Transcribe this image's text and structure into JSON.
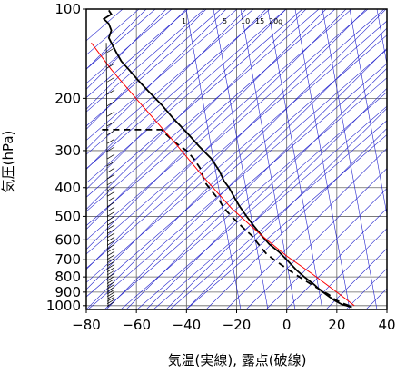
{
  "chart_data": {
    "type": "line",
    "title": "",
    "xlabel": "気温(実線), 露点(破線)",
    "ylabel": "気圧(hPa)",
    "xlim": [
      -80,
      40
    ],
    "ylim": [
      1030,
      100
    ],
    "yscale": "log",
    "x_ticks": [
      "−80",
      "−60",
      "−40",
      "−20",
      "0",
      "20",
      "40"
    ],
    "x_tick_values": [
      -80,
      -60,
      -40,
      -20,
      0,
      20,
      40
    ],
    "y_ticks": [
      "100",
      "200",
      "300",
      "400",
      "500",
      "600",
      "700",
      "800",
      "900",
      "1000"
    ],
    "y_tick_values": [
      100,
      200,
      300,
      400,
      500,
      600,
      700,
      800,
      900,
      1000
    ],
    "mixing_ratio_labels": [
      "1",
      "5",
      "10",
      "15",
      "20g"
    ],
    "grid": true,
    "series": [
      {
        "style": "solid",
        "color": "#000000",
        "points": [
          [
            26,
            1012
          ],
          [
            22,
            990
          ],
          [
            19,
            960
          ],
          [
            16,
            920
          ],
          [
            13,
            880
          ],
          [
            11,
            850
          ],
          [
            7,
            800
          ],
          [
            4,
            760
          ],
          [
            0,
            700
          ],
          [
            -3,
            660
          ],
          [
            -7,
            620
          ],
          [
            -10,
            580
          ],
          [
            -13,
            540
          ],
          [
            -16,
            500
          ],
          [
            -19,
            460
          ],
          [
            -21,
            430
          ],
          [
            -23,
            400
          ],
          [
            -25,
            380
          ],
          [
            -27,
            350
          ],
          [
            -30,
            320
          ],
          [
            -35,
            290
          ],
          [
            -40,
            260
          ],
          [
            -45,
            235
          ],
          [
            -50,
            210
          ],
          [
            -55,
            190
          ],
          [
            -59,
            175
          ],
          [
            -63,
            160
          ],
          [
            -66,
            150
          ],
          [
            -68,
            140
          ],
          [
            -70,
            130
          ],
          [
            -71,
            125
          ],
          [
            -70,
            118
          ],
          [
            -71,
            112
          ],
          [
            -73,
            108
          ],
          [
            -70,
            104
          ],
          [
            -71,
            101
          ]
        ]
      },
      {
        "style": "dashed",
        "color": "#000000",
        "points": [
          [
            25,
            1000
          ],
          [
            22,
            980
          ],
          [
            19,
            950
          ],
          [
            17,
            920
          ],
          [
            14,
            890
          ],
          [
            10,
            850
          ],
          [
            5,
            800
          ],
          [
            0,
            750
          ],
          [
            -5,
            700
          ],
          [
            -8,
            670
          ],
          [
            -10,
            640
          ],
          [
            -12,
            610
          ],
          [
            -14,
            580
          ],
          [
            -17,
            550
          ],
          [
            -20,
            520
          ],
          [
            -22,
            500
          ],
          [
            -25,
            470
          ],
          [
            -27,
            440
          ],
          [
            -30,
            410
          ],
          [
            -33,
            380
          ],
          [
            -34,
            350
          ],
          [
            -37,
            320
          ],
          [
            -40,
            300
          ],
          [
            -45,
            280
          ],
          [
            -48,
            265
          ],
          [
            -50,
            255
          ],
          [
            -60,
            255
          ],
          [
            -70,
            255
          ],
          [
            -74,
            255
          ]
        ]
      },
      {
        "style": "solid",
        "color": "#ff0000",
        "points": [
          [
            27,
            1000
          ],
          [
            20,
            900
          ],
          [
            10,
            780
          ],
          [
            0,
            680
          ],
          [
            -10,
            580
          ],
          [
            -22,
            470
          ],
          [
            -33,
            370
          ],
          [
            -45,
            280
          ],
          [
            -58,
            210
          ],
          [
            -70,
            160
          ],
          [
            -78,
            130
          ]
        ]
      }
    ],
    "wind_barbs": "shown along left axis (≈ −73 to −69 on the x-axis) from 100 to 1030 hPa",
    "colors": {
      "temperature": "#000000",
      "dewpoint": "#000000",
      "dry_adiabat_ref": "#ff0000",
      "mixing_ratio_lines": "#2222cc",
      "grid": "#555555"
    }
  }
}
